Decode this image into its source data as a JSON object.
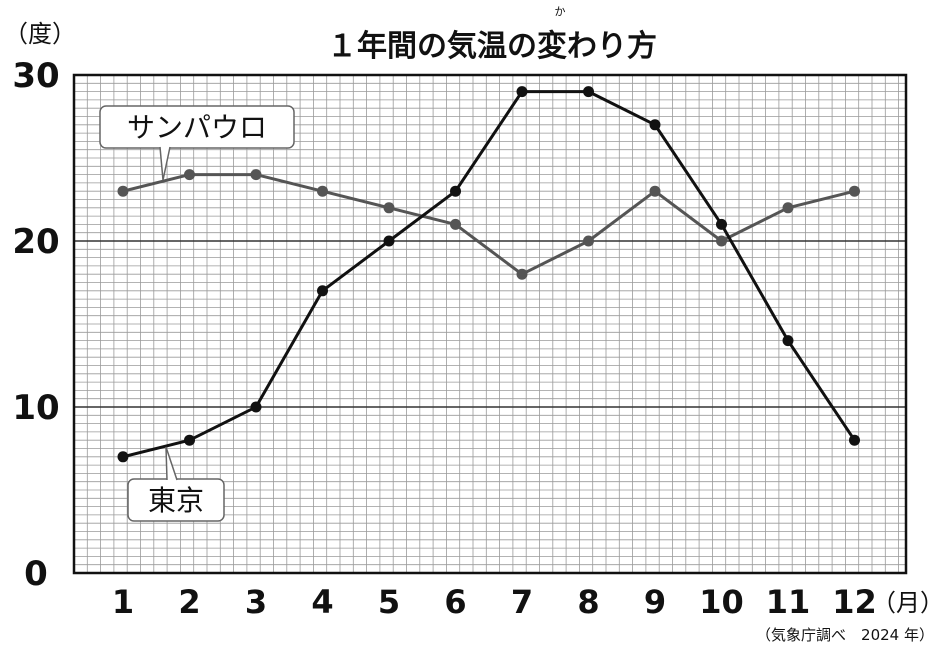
{
  "chart_data": {
    "type": "line",
    "title": "１年間の気温の変わり方",
    "title_furigana": "か",
    "ylabel": "（度）",
    "xlabel": "（月）",
    "ylim": [
      0,
      30
    ],
    "yticks": [
      0,
      10,
      20,
      30
    ],
    "x": [
      1,
      2,
      3,
      4,
      5,
      6,
      7,
      8,
      9,
      10,
      11,
      12
    ],
    "x_tick_labels": [
      "1",
      "2",
      "3",
      "4",
      "5",
      "6",
      "7",
      "8",
      "9",
      "10",
      "11",
      "12"
    ],
    "grid": true,
    "series": [
      {
        "name": "東京",
        "values": [
          7,
          8,
          10,
          17,
          20,
          23,
          29,
          29,
          27,
          21,
          14,
          8
        ],
        "color": "#111111"
      },
      {
        "name": "サンパウロ",
        "values": [
          23,
          24,
          24,
          23,
          22,
          21,
          18,
          20,
          23,
          20,
          22,
          23
        ],
        "color": "#555555"
      }
    ],
    "source": "（気象庁調べ　2024 年）"
  }
}
